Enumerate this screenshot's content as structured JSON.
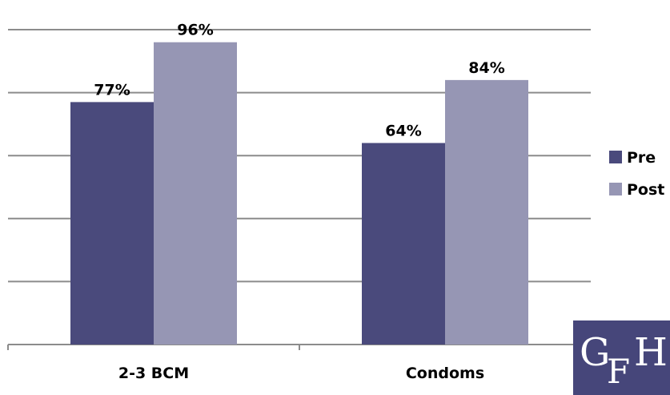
{
  "chart_data": {
    "type": "bar",
    "categories": [
      "2-3 BCM",
      "Condoms"
    ],
    "series": [
      {
        "name": "Pre",
        "values": [
          77,
          64
        ],
        "labels": [
          "77%",
          "64%"
        ],
        "color": "#4a4a7c"
      },
      {
        "name": "Post",
        "values": [
          96,
          84
        ],
        "labels": [
          "96%",
          "84%"
        ],
        "color": "#9696b4"
      }
    ],
    "ylim": [
      0,
      100
    ],
    "y_ticks": [
      0,
      20,
      40,
      60,
      80,
      100
    ],
    "grid": true,
    "show_y_tick_labels": false,
    "legend_position": "right"
  },
  "logo": {
    "letters": "GFH",
    "background_color": "#46467a",
    "text_color": "#ffffff"
  }
}
